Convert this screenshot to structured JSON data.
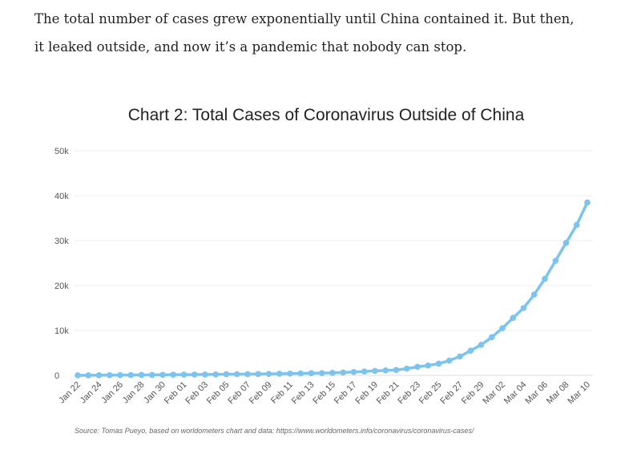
{
  "paragraph": [
    "The total number of cases grew exponentially until China contained it. But then,",
    "it leaked outside, and now it’s a pandemic that nobody can stop."
  ],
  "source": "Source: Tomas Pueyo, based on worldometers chart and data: https://www.worldometers.info/coronavirus/coronavirus-cases/",
  "chart_data": {
    "type": "line",
    "title": "Chart 2: Total Cases of Coronavirus Outside of China",
    "categories": [
      "Jan 22",
      null,
      "Jan 24",
      null,
      "Jan 26",
      null,
      "Jan 28",
      null,
      "Jan 30",
      null,
      "Feb 01",
      null,
      "Feb 03",
      null,
      "Feb 05",
      null,
      "Feb 07",
      null,
      "Feb 09",
      null,
      "Feb 11",
      null,
      "Feb 13",
      null,
      "Feb 15",
      null,
      "Feb 17",
      null,
      "Feb 19",
      null,
      "Feb 21",
      null,
      "Feb 23",
      null,
      "Feb 25",
      null,
      "Feb 27",
      null,
      "Feb 29",
      null,
      "Mar 02",
      null,
      "Mar 04",
      null,
      "Mar 06",
      null,
      "Mar 08",
      null,
      "Mar 10"
    ],
    "series": [
      {
        "name": "Total Cases",
        "color": "#7cc4ee",
        "values": [
          10,
          20,
          30,
          45,
          60,
          80,
          95,
          110,
          130,
          150,
          165,
          180,
          195,
          215,
          250,
          270,
          290,
          310,
          330,
          360,
          400,
          440,
          480,
          510,
          550,
          640,
          750,
          860,
          1000,
          1100,
          1200,
          1500,
          1900,
          2200,
          2600,
          3300,
          4200,
          5500,
          6800,
          8500,
          10500,
          12800,
          15000,
          18000,
          21500,
          25500,
          29500,
          33500,
          38500
        ]
      }
    ],
    "ylim": [
      0,
      50000
    ],
    "yticks": [
      0,
      {
        "value": 10000,
        "label": "10k"
      },
      {
        "value": 20000,
        "label": "20k"
      },
      {
        "value": 30000,
        "label": "30k"
      },
      {
        "value": 40000,
        "label": "40k"
      },
      {
        "value": 50000,
        "label": "50k"
      }
    ],
    "grid": true
  }
}
